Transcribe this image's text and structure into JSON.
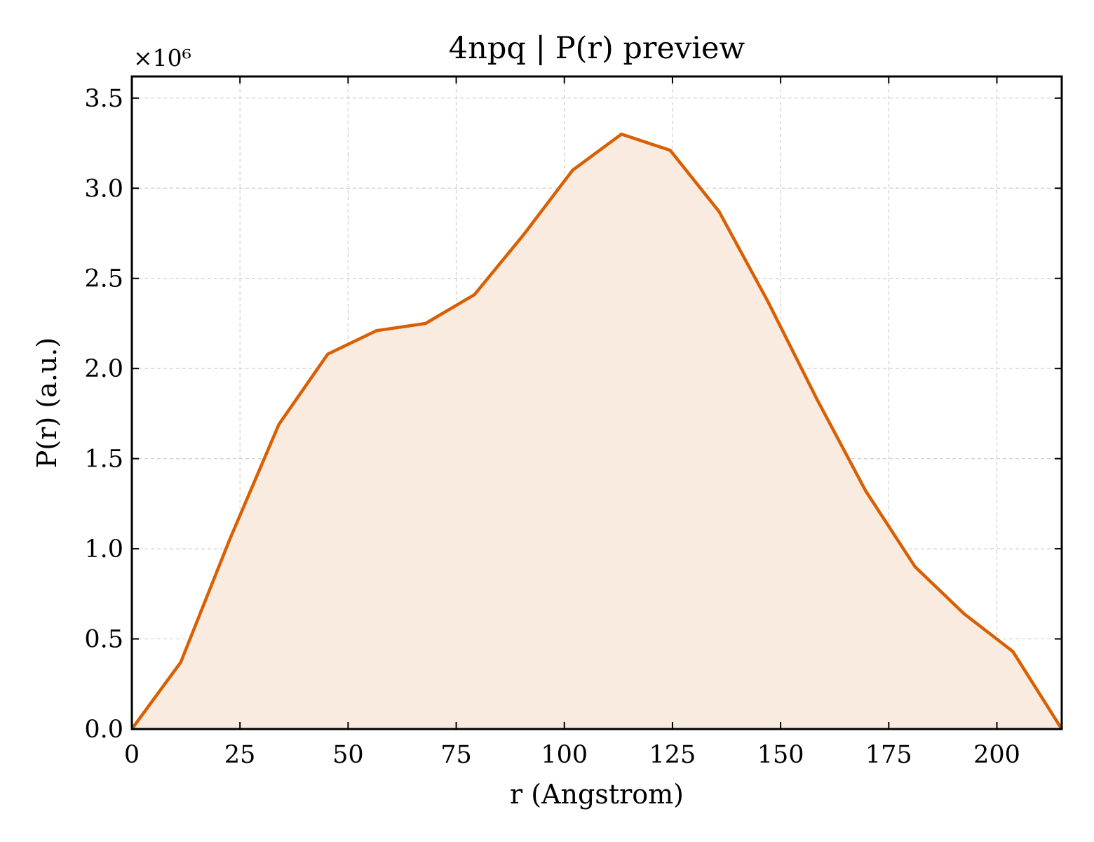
{
  "chart_data": {
    "type": "area",
    "title": "4npq | P(r) preview",
    "xlabel": "r (Angstrom)",
    "ylabel": "P(r) (a.u.)",
    "y_multiplier_label": "×10⁶",
    "y_multiplier": 1000000,
    "xlim": [
      0,
      215
    ],
    "ylim": [
      0,
      3.62
    ],
    "x_ticks": [
      0,
      25,
      50,
      75,
      100,
      125,
      150,
      175,
      200
    ],
    "y_ticks": [
      0.0,
      0.5,
      1.0,
      1.5,
      2.0,
      2.5,
      3.0,
      3.5
    ],
    "grid": true,
    "line_color": "#d95f02",
    "fill_color": "#f9ebe0",
    "series": [
      {
        "x": [
          0,
          11.3,
          22.6,
          34.0,
          45.3,
          56.6,
          67.9,
          79.2,
          90.5,
          101.9,
          113.2,
          124.5,
          135.8,
          147.1,
          158.4,
          169.7,
          181.1,
          192.4,
          203.7,
          215
        ],
        "y": [
          0.0,
          0.37,
          1.05,
          1.69,
          2.08,
          2.21,
          2.25,
          2.41,
          2.74,
          3.1,
          3.3,
          3.21,
          2.87,
          2.37,
          1.83,
          1.32,
          0.9,
          0.64,
          0.43,
          0.0
        ]
      }
    ]
  }
}
